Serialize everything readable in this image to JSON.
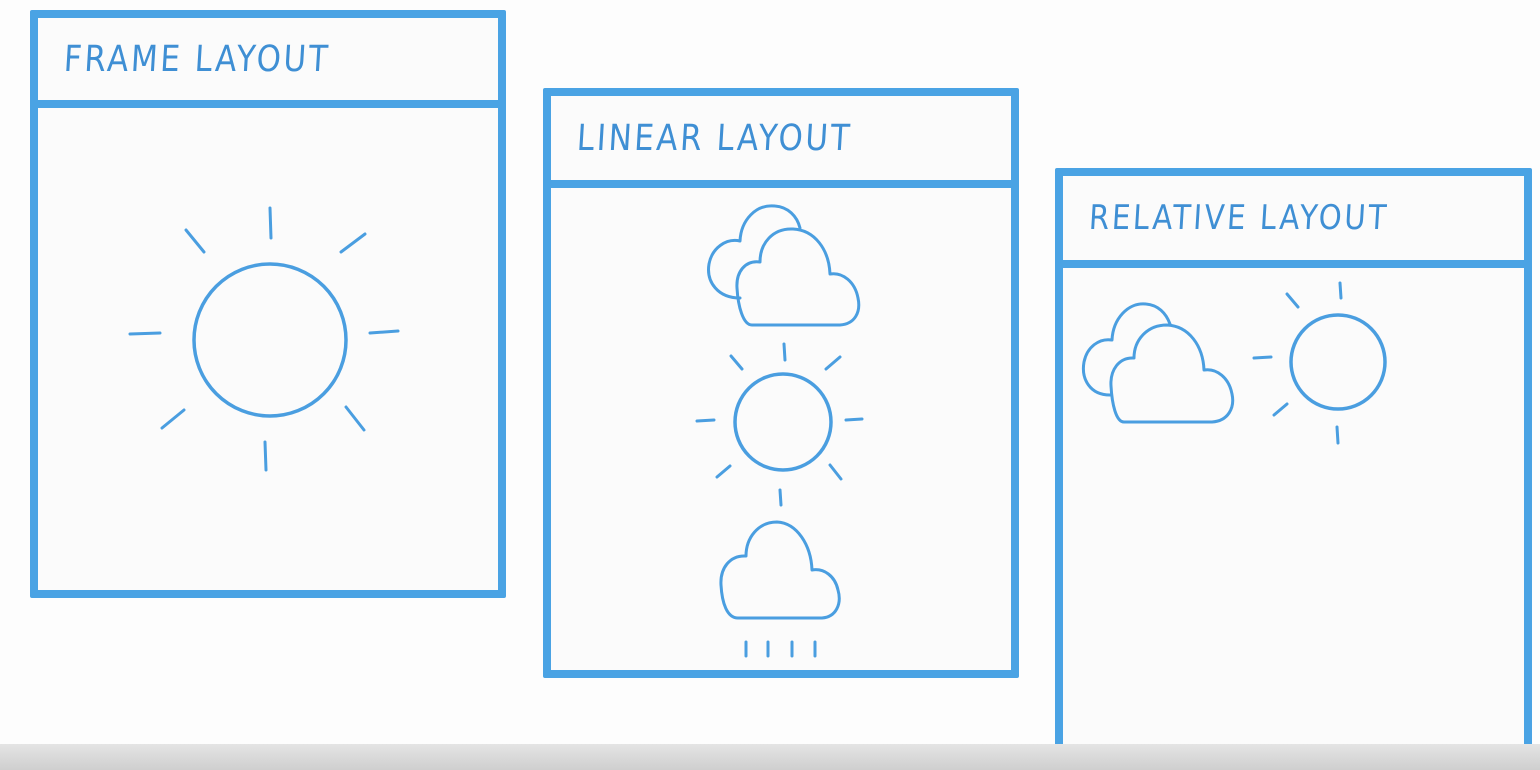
{
  "panels": {
    "frame": {
      "title": "FRAME LAYOUT"
    },
    "linear": {
      "title": "LINEAR LAYOUT"
    },
    "relative": {
      "title": "RELATIVE LAYOUT"
    }
  },
  "icons": {
    "frame": [
      "sun-icon"
    ],
    "linear": [
      "cloud-icon",
      "sun-icon",
      "rain-cloud-icon"
    ],
    "relative": [
      "cloud-icon",
      "sun-icon"
    ]
  },
  "colors": {
    "stroke": "#4aa3e4",
    "text": "#3f8fd4",
    "background": "#fbfbfb"
  }
}
